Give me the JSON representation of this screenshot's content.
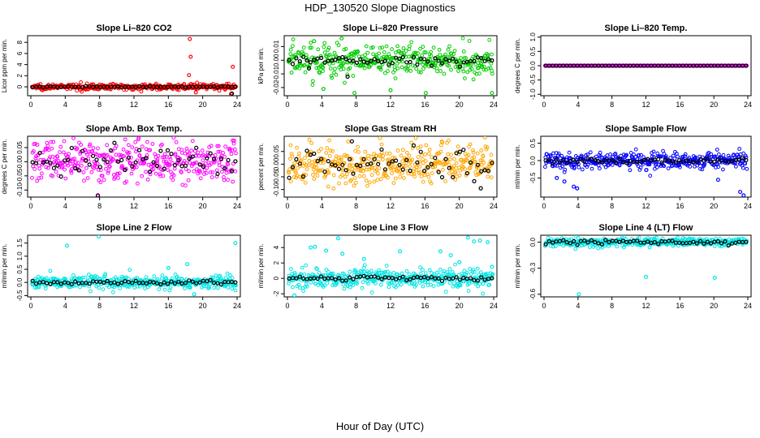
{
  "title": "HDP_130520  Slope Diagnostics",
  "xlabel": "Hour of Day (UTC)",
  "colors": {
    "axis": "#000000",
    "avg": "#000000"
  },
  "chart_data": [
    {
      "type": "scatter",
      "title": "Slope Li–820 CO2",
      "ylabel": "Licor ppm per min.",
      "xlim": [
        0,
        24
      ],
      "ylim": [
        -1.6,
        9.2
      ],
      "xticks": [
        0,
        4,
        8,
        12,
        16,
        20,
        24
      ],
      "xtick_labels": [
        "0",
        "4",
        "8",
        "12",
        "16",
        "20",
        "24"
      ],
      "yticks": [
        0,
        2,
        4,
        6,
        8
      ],
      "ytick_labels": [
        "0",
        "2",
        "4",
        "6",
        "8"
      ],
      "color": "#ff0000",
      "noise": 0.25,
      "outliers": [
        [
          18.5,
          8.6
        ],
        [
          18.6,
          5.4
        ],
        [
          18.4,
          2.1
        ],
        [
          23.5,
          3.6
        ],
        [
          23.3,
          -1.3
        ],
        [
          19.2,
          -1.0
        ]
      ],
      "avg_noise": 0.05,
      "avg_outliers": [
        [
          23.4,
          -1.2
        ]
      ]
    },
    {
      "type": "scatter",
      "title": "Slope Li–820 Pressure",
      "ylabel": "kPa per min.",
      "xlim": [
        0,
        24
      ],
      "ylim": [
        -0.026,
        0.018
      ],
      "xticks": [
        0,
        4,
        8,
        12,
        16,
        20,
        24
      ],
      "xtick_labels": [
        "0",
        "4",
        "8",
        "12",
        "16",
        "20",
        "24"
      ],
      "yticks": [
        -0.02,
        -0.01,
        0.0,
        0.01
      ],
      "ytick_labels": [
        "-0.02",
        "-0.01",
        "0.00",
        "0.01"
      ],
      "color": "#00cc00",
      "noise": 0.006,
      "outliers": [
        [
          6.3,
          0.016
        ],
        [
          3.1,
          0.014
        ],
        [
          7.8,
          -0.024
        ],
        [
          16.1,
          -0.024
        ],
        [
          23.8,
          -0.024
        ],
        [
          12.0,
          -0.022
        ],
        [
          4.2,
          -0.021
        ]
      ],
      "avg_noise": 0.0015,
      "avg_outliers": [
        [
          7.0,
          -0.012
        ],
        [
          2.5,
          -0.006
        ]
      ]
    },
    {
      "type": "scatter",
      "title": "Slope Li–820 Temp.",
      "ylabel": "degrees C per min.",
      "xlim": [
        0,
        24
      ],
      "ylim": [
        -1.05,
        1.05
      ],
      "xticks": [
        0,
        4,
        8,
        12,
        16,
        20,
        24
      ],
      "xtick_labels": [
        "0",
        "4",
        "8",
        "12",
        "16",
        "20",
        "24"
      ],
      "yticks": [
        -1.0,
        -0.5,
        0.0,
        0.5,
        1.0
      ],
      "ytick_labels": [
        "-1.0",
        "-0.5",
        "0.0",
        "0.5",
        "1.0"
      ],
      "color": "#ff00ff",
      "noise": 0.0,
      "outliers": [],
      "avg_noise": 0.0,
      "avg_outliers": []
    },
    {
      "type": "scatter",
      "title": "Slope Amb. Box Temp.",
      "ylabel": "degrees C per min.",
      "xlim": [
        0,
        24
      ],
      "ylim": [
        -0.125,
        0.09
      ],
      "xticks": [
        0,
        4,
        8,
        12,
        16,
        20,
        24
      ],
      "xtick_labels": [
        "0",
        "4",
        "8",
        "12",
        "16",
        "20",
        "24"
      ],
      "yticks": [
        -0.1,
        -0.05,
        0.0,
        0.05
      ],
      "ytick_labels": [
        "-0.10",
        "-0.05",
        "0.00",
        "0.05"
      ],
      "color": "#ff00ff",
      "noise": 0.035,
      "outliers": [
        [
          7.8,
          -0.118
        ],
        [
          23.5,
          0.075
        ]
      ],
      "avg_noise": 0.03,
      "avg_outliers": [
        [
          7.8,
          -0.12
        ]
      ]
    },
    {
      "type": "scatter",
      "title": "Slope Gas Stream RH",
      "ylabel": "percent per min.",
      "xlim": [
        0,
        24
      ],
      "ylim": [
        -0.13,
        0.11
      ],
      "xticks": [
        0,
        4,
        8,
        12,
        16,
        20,
        24
      ],
      "xtick_labels": [
        "0",
        "4",
        "8",
        "12",
        "16",
        "20",
        "24"
      ],
      "yticks": [
        -0.1,
        -0.05,
        0.0,
        0.05
      ],
      "ytick_labels": [
        "-0.10",
        "-0.05",
        "0.00",
        "0.05"
      ],
      "color": "#ffa500",
      "noise": 0.04,
      "outliers": [],
      "avg_noise": 0.03,
      "avg_outliers": [
        [
          22.5,
          -0.095
        ],
        [
          7.5,
          0.09
        ]
      ]
    },
    {
      "type": "scatter",
      "title": "Slope Sample Flow",
      "ylabel": "ml/min per min.",
      "xlim": [
        0,
        24
      ],
      "ylim": [
        -1.05,
        0.7
      ],
      "xticks": [
        0,
        4,
        8,
        12,
        16,
        20,
        24
      ],
      "xtick_labels": [
        "0",
        "4",
        "8",
        "12",
        "16",
        "20",
        "24"
      ],
      "yticks": [
        -0.5,
        0.0,
        0.5
      ],
      "ytick_labels": [
        "-0.5",
        "0.0",
        "0.5"
      ],
      "color": "#0000ff",
      "noise": 0.12,
      "outliers": [
        [
          3.5,
          -0.75
        ],
        [
          3.9,
          -0.8
        ],
        [
          2.4,
          -0.6
        ],
        [
          23.1,
          -0.9
        ],
        [
          23.5,
          -1.0
        ],
        [
          1.5,
          -0.5
        ],
        [
          20.5,
          -0.55
        ]
      ],
      "avg_noise": 0.04,
      "avg_outliers": []
    },
    {
      "type": "scatter",
      "title": "Slope Line 2 Flow",
      "ylabel": "ml/min per min.",
      "xlim": [
        0,
        24
      ],
      "ylim": [
        -0.55,
        1.8
      ],
      "xticks": [
        0,
        4,
        8,
        12,
        16,
        20,
        24
      ],
      "xtick_labels": [
        "0",
        "4",
        "8",
        "12",
        "16",
        "20",
        "24"
      ],
      "yticks": [
        -0.5,
        0.0,
        0.5,
        1.0,
        1.5
      ],
      "ytick_labels": [
        "-0.5",
        "0.0",
        "0.5",
        "1.0",
        "1.5"
      ],
      "color": "#00e5e5",
      "noise": 0.12,
      "outliers": [
        [
          7.9,
          1.75
        ],
        [
          4.2,
          1.4
        ],
        [
          23.8,
          1.5
        ],
        [
          18.2,
          0.7
        ],
        [
          16.0,
          0.55
        ],
        [
          19.0,
          -0.45
        ]
      ],
      "avg_noise": 0.03,
      "avg_outliers": []
    },
    {
      "type": "scatter",
      "title": "Slope Line 3 Flow",
      "ylabel": "ml/min per min.",
      "xlim": [
        0,
        24
      ],
      "ylim": [
        -2.4,
        5.6
      ],
      "xticks": [
        0,
        4,
        8,
        12,
        16,
        20,
        24
      ],
      "xtick_labels": [
        "0",
        "4",
        "8",
        "12",
        "16",
        "20",
        "24"
      ],
      "yticks": [
        -2,
        0,
        2,
        4
      ],
      "ytick_labels": [
        "-2",
        "0",
        "2",
        "4"
      ],
      "color": "#00e5e5",
      "noise": 0.6,
      "outliers": [
        [
          5.9,
          5.2
        ],
        [
          2.7,
          4.0
        ],
        [
          3.2,
          4.1
        ],
        [
          6.4,
          3.2
        ],
        [
          13.1,
          3.5
        ],
        [
          21.0,
          5.3
        ],
        [
          21.7,
          4.8
        ],
        [
          22.4,
          4.9
        ],
        [
          23.3,
          4.7
        ],
        [
          19.0,
          3.0
        ],
        [
          20.0,
          2.1
        ],
        [
          4.5,
          3.6
        ],
        [
          8.9,
          2.5
        ],
        [
          17.8,
          3.5
        ],
        [
          23.8,
          1.5
        ],
        [
          0.8,
          -2.2
        ]
      ],
      "avg_noise": 0.15,
      "avg_outliers": []
    },
    {
      "type": "scatter",
      "title": "Slope Line 4 (LT) Flow",
      "ylabel": "ml/min per min.",
      "xlim": [
        0,
        24
      ],
      "ylim": [
        -0.63,
        0.08
      ],
      "xticks": [
        0,
        4,
        8,
        12,
        16,
        20,
        24
      ],
      "xtick_labels": [
        "0",
        "4",
        "8",
        "12",
        "16",
        "20",
        "24"
      ],
      "yticks": [
        -0.6,
        -0.3,
        0.0
      ],
      "ytick_labels": [
        "-0.6",
        "-0.3",
        "0.0"
      ],
      "color": "#00e5e5",
      "noise": 0.025,
      "outliers": [
        [
          4.1,
          -0.6
        ],
        [
          12.0,
          -0.4
        ],
        [
          20.1,
          -0.41
        ]
      ],
      "avg_noise": 0.012,
      "avg_outliers": []
    }
  ]
}
